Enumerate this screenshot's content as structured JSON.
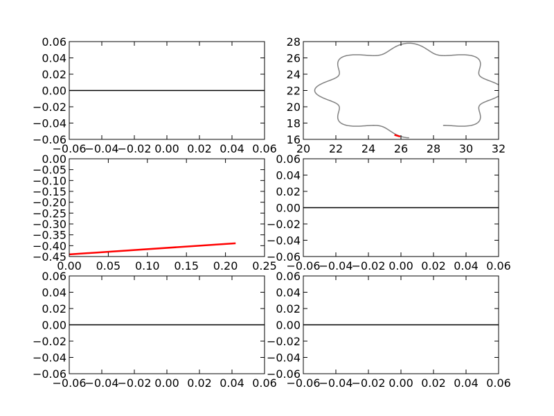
{
  "chart_data": [
    {
      "id": "ax1",
      "type": "line",
      "title": "",
      "xlabel": "",
      "ylabel": "",
      "xlim": [
        -0.06,
        0.06
      ],
      "ylim": [
        -0.06,
        0.06
      ],
      "xticks": [
        -0.06,
        -0.04,
        -0.02,
        0.0,
        0.02,
        0.04,
        0.06
      ],
      "yticks": [
        -0.06,
        -0.04,
        -0.02,
        0.0,
        0.02,
        0.04,
        0.06
      ],
      "xtick_labels": [
        "−0.06",
        "−0.04",
        "−0.02",
        "0.00",
        "0.02",
        "0.04",
        "0.06"
      ],
      "ytick_labels": [
        "−0.06",
        "−0.04",
        "−0.02",
        "0.00",
        "0.02",
        "0.04",
        "0.06"
      ],
      "grid": false,
      "series": [
        {
          "color": "#000000",
          "x": [
            -0.06,
            0.06
          ],
          "y": [
            0,
            0
          ]
        }
      ]
    },
    {
      "id": "ax2",
      "type": "line",
      "title": "",
      "xlabel": "",
      "ylabel": "",
      "xlim": [
        20,
        32
      ],
      "ylim": [
        16,
        28
      ],
      "xticks": [
        20,
        22,
        24,
        26,
        28,
        30,
        32
      ],
      "yticks": [
        16,
        18,
        20,
        22,
        24,
        26,
        28
      ],
      "xtick_labels": [
        "20",
        "22",
        "24",
        "26",
        "28",
        "30",
        "32"
      ],
      "ytick_labels": [
        "16",
        "18",
        "20",
        "22",
        "24",
        "26",
        "28"
      ],
      "grid": false,
      "series": [
        {
          "color": "#808080",
          "curve": "gear",
          "center": [
            26.5,
            22.0
          ],
          "mean_radius": 5.25,
          "amplitude": 0.55,
          "lobes": 8,
          "phase_deg": 0,
          "gap_deg": [
            -90,
            -64
          ]
        },
        {
          "color": "#ff0000",
          "x": [
            25.6,
            25.95
          ],
          "y": [
            16.55,
            16.35
          ]
        }
      ]
    },
    {
      "id": "ax3",
      "type": "line",
      "title": "",
      "xlabel": "",
      "ylabel": "",
      "xlim": [
        0.0,
        0.25
      ],
      "ylim": [
        -0.45,
        0.0
      ],
      "xticks": [
        0.0,
        0.05,
        0.1,
        0.15,
        0.2,
        0.25
      ],
      "yticks": [
        -0.45,
        -0.4,
        -0.35,
        -0.3,
        -0.25,
        -0.2,
        -0.15,
        -0.1,
        -0.05,
        0.0
      ],
      "xtick_labels": [
        "0.00",
        "0.05",
        "0.10",
        "0.15",
        "0.20",
        "0.25"
      ],
      "ytick_labels": [
        "−0.45",
        "−0.40",
        "−0.35",
        "−0.30",
        "−0.25",
        "−0.20",
        "−0.15",
        "−0.10",
        "−0.05",
        "0.00"
      ],
      "grid": false,
      "series": [
        {
          "color": "#ff0000",
          "x": [
            0.0,
            0.213
          ],
          "y": [
            -0.44,
            -0.389
          ]
        }
      ]
    },
    {
      "id": "ax4",
      "type": "line",
      "title": "",
      "xlabel": "",
      "ylabel": "",
      "xlim": [
        -0.06,
        0.06
      ],
      "ylim": [
        -0.06,
        0.06
      ],
      "xticks": [
        -0.06,
        -0.04,
        -0.02,
        0.0,
        0.02,
        0.04,
        0.06
      ],
      "yticks": [
        -0.06,
        -0.04,
        -0.02,
        0.0,
        0.02,
        0.04,
        0.06
      ],
      "xtick_labels": [
        "−0.06",
        "−0.04",
        "−0.02",
        "0.00",
        "0.02",
        "0.04",
        "0.06"
      ],
      "ytick_labels": [
        "−0.06",
        "−0.04",
        "−0.02",
        "0.00",
        "0.02",
        "0.04",
        "0.06"
      ],
      "grid": false,
      "series": [
        {
          "color": "#000000",
          "x": [
            -0.06,
            0.06
          ],
          "y": [
            0,
            0
          ]
        }
      ]
    },
    {
      "id": "ax5",
      "type": "line",
      "title": "",
      "xlabel": "",
      "ylabel": "",
      "xlim": [
        -0.06,
        0.06
      ],
      "ylim": [
        -0.06,
        0.06
      ],
      "xticks": [
        -0.06,
        -0.04,
        -0.02,
        0.0,
        0.02,
        0.04,
        0.06
      ],
      "yticks": [
        -0.06,
        -0.04,
        -0.02,
        0.0,
        0.02,
        0.04,
        0.06
      ],
      "xtick_labels": [
        "−0.06",
        "−0.04",
        "−0.02",
        "0.00",
        "0.02",
        "0.04",
        "0.06"
      ],
      "ytick_labels": [
        "−0.06",
        "−0.04",
        "−0.02",
        "0.00",
        "0.02",
        "0.04",
        "0.06"
      ],
      "grid": false,
      "series": [
        {
          "color": "#000000",
          "x": [
            -0.06,
            0.06
          ],
          "y": [
            0,
            0
          ]
        }
      ]
    },
    {
      "id": "ax6",
      "type": "line",
      "title": "",
      "xlabel": "",
      "ylabel": "",
      "xlim": [
        -0.06,
        0.06
      ],
      "ylim": [
        -0.06,
        0.06
      ],
      "xticks": [
        -0.06,
        -0.04,
        -0.02,
        0.0,
        0.02,
        0.04,
        0.06
      ],
      "yticks": [
        -0.06,
        -0.04,
        -0.02,
        0.0,
        0.02,
        0.04,
        0.06
      ],
      "xtick_labels": [
        "−0.06",
        "−0.04",
        "−0.02",
        "0.00",
        "0.02",
        "0.04",
        "0.06"
      ],
      "ytick_labels": [
        "−0.06",
        "−0.04",
        "−0.02",
        "0.00",
        "0.02",
        "0.04",
        "0.06"
      ],
      "grid": false,
      "series": [
        {
          "color": "#000000",
          "x": [
            -0.06,
            0.06
          ],
          "y": [
            0,
            0
          ]
        }
      ]
    }
  ]
}
